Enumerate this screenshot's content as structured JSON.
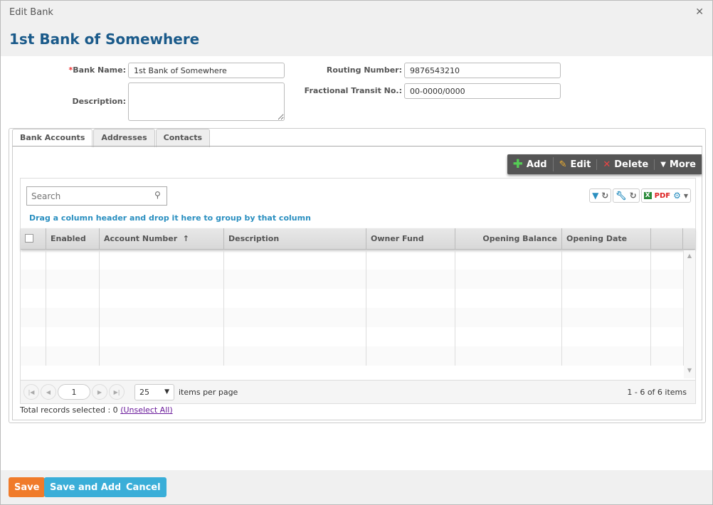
{
  "window": {
    "title": "Edit Bank",
    "close_icon": "close-icon"
  },
  "header": {
    "title": "1st Bank of Somewhere"
  },
  "form": {
    "bank_name": {
      "label": "Bank Name:",
      "required": "*",
      "value": "1st Bank of Somewhere"
    },
    "description": {
      "label": "Description:",
      "value": ""
    },
    "routing_number": {
      "label": "Routing Number:",
      "value": "9876543210"
    },
    "fractional_transit": {
      "label": "Fractional Transit No.:",
      "value": "00-0000/0000"
    }
  },
  "tabs": [
    {
      "label": "Bank Accounts",
      "active": true
    },
    {
      "label": "Addresses"
    },
    {
      "label": "Contacts"
    }
  ],
  "toolbar": {
    "add": "Add",
    "edit": "Edit",
    "delete": "Delete",
    "more": "More"
  },
  "grid": {
    "search_placeholder": "Search",
    "group_hint": "Drag a column header and drop it here to group by that column",
    "columns": [
      "Enabled",
      "Account Number",
      "Description",
      "Owner Fund",
      "Opening Balance",
      "Opening Date"
    ],
    "sort_indicator": "↑",
    "pager": {
      "page": "1",
      "page_size": "25",
      "items_per_page": "items per page",
      "info": "1 - 6 of 6 items"
    },
    "total_selected": "Total records selected : 0",
    "unselect_all": "(Unselect All)"
  },
  "footer": {
    "save": "Save",
    "save_and_add": "Save and Add",
    "cancel": "Cancel"
  },
  "colors": {
    "title": "#1a5a8a",
    "save": "#f07b2a",
    "secondary": "#3aaed8",
    "toolbar": "#555555"
  }
}
